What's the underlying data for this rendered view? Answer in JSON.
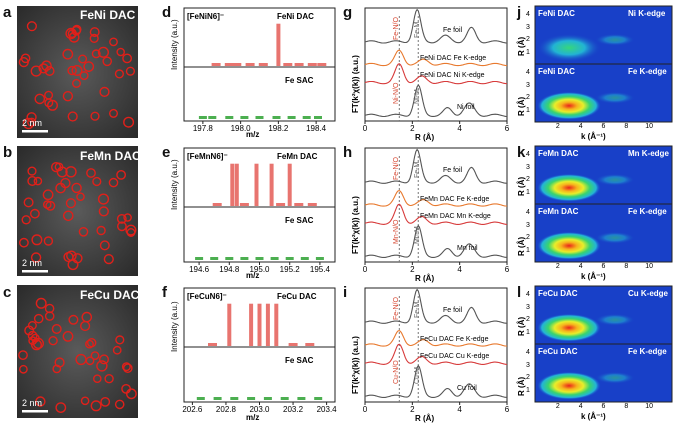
{
  "figure": {
    "panels": {
      "a": {
        "letter": "a",
        "title": "FeNi DAC",
        "scale": "2 nm"
      },
      "b": {
        "letter": "b",
        "title": "FeMn DAC",
        "scale": "2 nm"
      },
      "c": {
        "letter": "c",
        "title": "FeCu DAC",
        "scale": "2 nm"
      },
      "d": {
        "letter": "d",
        "formula": "[FeNiN6]⁻",
        "top_label": "FeNi DAC",
        "bottom_label": "Fe SAC",
        "xlabel": "m/z",
        "ylabel": "Intensity (a.u.)",
        "ticks": [
          "197.8",
          "198.0",
          "198.2",
          "198.4"
        ]
      },
      "e": {
        "letter": "e",
        "formula": "[FeMnN6]⁻",
        "top_label": "FeMn DAC",
        "bottom_label": "Fe SAC",
        "xlabel": "m/z",
        "ylabel": "Intensity (a.u.)",
        "ticks": [
          "194.6",
          "194.8",
          "195.0",
          "195.2",
          "195.4"
        ]
      },
      "f": {
        "letter": "f",
        "formula": "[FeCuN6]⁻",
        "top_label": "FeCu DAC",
        "bottom_label": "Fe SAC",
        "xlabel": "m/z",
        "ylabel": "Intensity (a.u.)",
        "ticks": [
          "202.6",
          "202.8",
          "203.0",
          "203.2",
          "203.4"
        ]
      },
      "g": {
        "letter": "g",
        "ylabel": "FT(k²χ(k)) (a.u.)",
        "xlabel": "R (Å)",
        "ticks": [
          "0",
          "2",
          "4",
          "6"
        ],
        "annot_left": "Fe-N/O",
        "annot_right": "Fe-M",
        "annot_left2": "Ni-N/O",
        "annot_right2": "Ni-M",
        "curves": [
          "Fe foil",
          "FeNi DAC Fe K-edge",
          "FeNi DAC Ni K-edge",
          "Ni foil"
        ]
      },
      "h": {
        "letter": "h",
        "ylabel": "FT(k²χ(k)) (a.u.)",
        "xlabel": "R (Å)",
        "ticks": [
          "0",
          "2",
          "4",
          "6"
        ],
        "annot_left": "Fe-N/O",
        "annot_right": "Fe-M",
        "annot_left2": "Mn-N/O",
        "annot_right2": "Mn-M",
        "curves": [
          "Fe foil",
          "FeMn DAC Fe K-edge",
          "FeMn DAC Mn K-edge",
          "Mn foil"
        ]
      },
      "i": {
        "letter": "i",
        "ylabel": "FT(k²χ(k)) (a.u.)",
        "xlabel": "R (Å)",
        "ticks": [
          "0",
          "2",
          "4",
          "6"
        ],
        "annot_left": "Fe-N/O",
        "annot_right": "Fe-M",
        "annot_left2": "Cu-N/O",
        "annot_right2": "Cu-M",
        "curves": [
          "Fe foil",
          "FeCu DAC Fe K-edge",
          "FeCu DAC Cu K-edge",
          "Cu foil"
        ]
      },
      "j": {
        "letter": "j",
        "top_sample": "FeNi DAC",
        "top_edge": "Ni K-edge",
        "bottom_sample": "FeNi DAC",
        "bottom_edge": "Fe K-edge",
        "ylabel": "R (Å)",
        "xlabel": "k (Å⁻¹)",
        "xticks": [
          "2",
          "4",
          "6",
          "8",
          "10"
        ],
        "yticks": [
          "4",
          "3",
          "2",
          "1"
        ]
      },
      "k": {
        "letter": "k",
        "top_sample": "FeMn DAC",
        "top_edge": "Mn K-edge",
        "bottom_sample": "FeMn DAC",
        "bottom_edge": "Fe K-edge",
        "ylabel": "R (Å)",
        "xlabel": "k (Å⁻¹)",
        "xticks": [
          "2",
          "4",
          "6",
          "8",
          "10"
        ],
        "yticks": [
          "4",
          "3",
          "2",
          "1"
        ]
      },
      "l": {
        "letter": "l",
        "top_sample": "FeCu DAC",
        "top_edge": "Cu K-edge",
        "bottom_sample": "FeCu DAC",
        "bottom_edge": "Fe K-edge",
        "ylabel": "R (Å)",
        "xlabel": "k (Å⁻¹)",
        "xticks": [
          "2",
          "4",
          "6",
          "8",
          "10"
        ],
        "yticks": [
          "4",
          "3",
          "2",
          "1"
        ]
      }
    },
    "colors": {
      "red_peak": "#e8746f",
      "green_peak": "#4caf50",
      "orange_curve": "#e8792e",
      "red_curve": "#d73a3a",
      "gray_curve": "#555555",
      "accent_text": "#d6452f"
    }
  },
  "chart_data": [
    {
      "panel": "d",
      "type": "bar",
      "series": [
        {
          "name": "FeNi DAC",
          "x": [
            197.87,
            197.94,
            197.98,
            198.05,
            198.12,
            198.2,
            198.25,
            198.31,
            198.38,
            198.43
          ],
          "values": [
            0.05,
            0.05,
            0.05,
            0.05,
            0.05,
            0.9,
            0.05,
            0.05,
            0.05,
            0.05
          ]
        },
        {
          "name": "Fe SAC",
          "x": [
            197.8,
            197.85,
            197.94,
            198.02,
            198.1,
            198.19,
            198.27,
            198.35,
            198.41
          ],
          "values": [
            0.05,
            0.05,
            0.05,
            0.05,
            0.05,
            0.05,
            0.05,
            0.05,
            0.05
          ]
        }
      ],
      "xlim": [
        197.7,
        198.5
      ],
      "xlabel": "m/z",
      "ylabel": "Intensity (a.u.)"
    },
    {
      "panel": "e",
      "type": "bar",
      "series": [
        {
          "name": "FeMn DAC",
          "x": [
            194.72,
            194.82,
            194.85,
            194.9,
            194.98,
            195.08,
            195.14,
            195.2,
            195.26,
            195.35
          ],
          "values": [
            0.05,
            0.9,
            0.9,
            0.05,
            0.9,
            0.9,
            0.05,
            0.9,
            0.05,
            0.05
          ]
        },
        {
          "name": "Fe SAC",
          "x": [
            194.6,
            194.7,
            194.8,
            194.9,
            195.0,
            195.1,
            195.2,
            195.3,
            195.4
          ],
          "values": [
            0.05,
            0.05,
            0.05,
            0.05,
            0.05,
            0.05,
            0.05,
            0.05,
            0.05
          ]
        }
      ],
      "xlim": [
        194.5,
        195.5
      ],
      "xlabel": "m/z",
      "ylabel": "Intensity (a.u.)"
    },
    {
      "panel": "f",
      "type": "bar",
      "series": [
        {
          "name": "FeCu DAC",
          "x": [
            202.72,
            202.82,
            202.95,
            203.0,
            203.05,
            203.1,
            203.2,
            203.3
          ],
          "values": [
            0.05,
            0.9,
            0.9,
            0.9,
            0.9,
            0.9,
            0.05,
            0.05
          ]
        },
        {
          "name": "Fe SAC",
          "x": [
            202.65,
            202.75,
            202.85,
            202.95,
            203.05,
            203.15,
            203.25,
            203.35
          ],
          "values": [
            0.05,
            0.05,
            0.05,
            0.05,
            0.05,
            0.05,
            0.05,
            0.05
          ]
        }
      ],
      "xlim": [
        202.55,
        203.45
      ],
      "xlabel": "m/z",
      "ylabel": "Intensity (a.u.)"
    }
  ]
}
